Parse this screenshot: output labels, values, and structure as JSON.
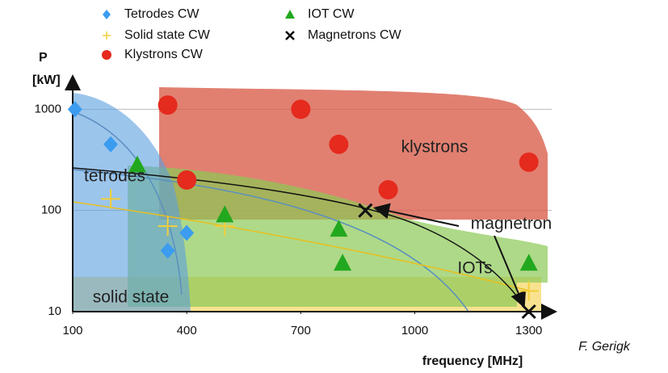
{
  "chart_data": {
    "type": "scatter",
    "y_label": [
      "P",
      "[kW]"
    ],
    "x_label": "frequency [MHz]",
    "credit": "F. Gerigk",
    "xlim": [
      100,
      1375
    ],
    "xticks": [
      100,
      400,
      700,
      1000,
      1300
    ],
    "ylim": [
      10,
      2300
    ],
    "yticks": [
      10,
      100,
      1000
    ],
    "log_y": true,
    "grid": true,
    "series": [
      {
        "name": "Tetrodes CW",
        "color": "#3b9cf0",
        "marker": "diamond",
        "x": [
          106,
          200,
          350,
          400
        ],
        "values": [
          1000,
          450,
          40,
          60
        ]
      },
      {
        "name": "Solid state CW",
        "color": "#f2cf3a",
        "marker": "plus",
        "x": [
          200,
          350,
          500,
          1300
        ],
        "values": [
          130,
          70,
          70,
          16
        ]
      },
      {
        "name": "Klystrons CW",
        "color": "#e52a1e",
        "marker": "circle",
        "x": [
          350,
          700,
          800,
          400,
          930,
          1300
        ],
        "values": [
          1100,
          1000,
          450,
          200,
          160,
          300
        ]
      },
      {
        "name": "IOT CW",
        "color": "#22a81e",
        "marker": "triangle",
        "x": [
          270,
          500,
          800,
          810,
          1300
        ],
        "values": [
          280,
          90,
          65,
          30,
          30
        ]
      },
      {
        "name": "Magnetrons CW",
        "color": "#111111",
        "marker": "cross",
        "x": [
          870,
          1300
        ],
        "values": [
          100,
          10
        ]
      }
    ],
    "annotations": [
      "klystrons",
      "tetrodes",
      "magnetron",
      "IOTs",
      "solid state"
    ]
  }
}
